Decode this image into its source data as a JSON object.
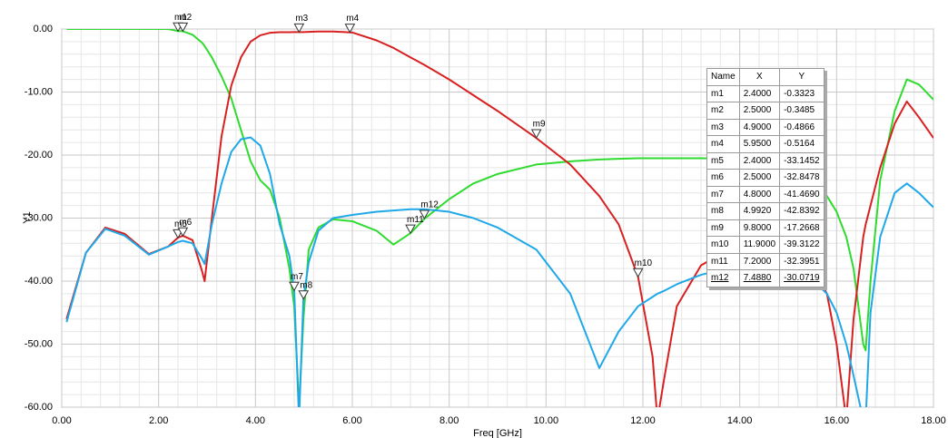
{
  "chart_data": {
    "type": "line",
    "x_label": "Freq [GHz]",
    "y_label": "Y1",
    "x": [
      0.1,
      0.5,
      0.9,
      1.3,
      1.8,
      2.2,
      2.4,
      2.5,
      2.7,
      2.9,
      2.95,
      3.1,
      3.3,
      3.5,
      3.7,
      3.9,
      4.1,
      4.3,
      4.5,
      4.7,
      4.8,
      4.9,
      4.99,
      5.1,
      5.3,
      5.6,
      6.0,
      6.5,
      6.85,
      7.2,
      7.49,
      8.0,
      8.5,
      9.0,
      9.8,
      10.5,
      11.1,
      11.5,
      11.9,
      12.2,
      12.3,
      12.45,
      12.7,
      13.2,
      14,
      14.5,
      15,
      15.4,
      15.8,
      16.0,
      16.2,
      16.35,
      16.55,
      16.6,
      16.7,
      16.9,
      17.2,
      17.45,
      17.7,
      18.0
    ],
    "series": [
      {
        "color": "#2edb2e",
        "values": [
          0,
          0,
          0,
          0,
          0,
          0,
          -0.33,
          -0.35,
          -0.9,
          -2.2,
          -2.7,
          -4.5,
          -7.5,
          -11,
          -16,
          -21,
          -24,
          -25.5,
          -30,
          -38,
          -44,
          -60,
          -46,
          -35,
          -31.5,
          -30.2,
          -30.5,
          -32,
          -34.2,
          -32.4,
          -30.1,
          -27,
          -24.5,
          -23,
          -21.5,
          -21,
          -20.7,
          -20.6,
          -20.5,
          -20.5,
          -20.5,
          -20.5,
          -20.5,
          -20.5,
          -20.6,
          -20.8,
          -21.5,
          -23,
          -26.5,
          -29,
          -33,
          -38,
          -50,
          -51,
          -40,
          -24,
          -13,
          -8,
          -8.8,
          -11.2
        ]
      },
      {
        "color": "#d82020",
        "values": [
          -46,
          -35.5,
          -31.5,
          -32.5,
          -35.7,
          -34.5,
          -33.1,
          -32.8,
          -33.5,
          -38.5,
          -40,
          -30,
          -17,
          -9,
          -4.5,
          -2,
          -1,
          -0.6,
          -0.5,
          -0.5,
          -0.49,
          -0.49,
          -0.48,
          -0.45,
          -0.4,
          -0.4,
          -0.55,
          -1.8,
          -3,
          -4.5,
          -5.7,
          -8,
          -10.5,
          -13,
          -17.3,
          -21.5,
          -26.5,
          -31,
          -39.3,
          -52,
          -62,
          -55,
          -44,
          -37.5,
          -34,
          -34,
          -34.5,
          -36,
          -42,
          -50,
          -62,
          -46,
          -33,
          -31,
          -28,
          -22,
          -15,
          -11.5,
          -14,
          -17.3
        ]
      },
      {
        "color": "#1fa8e8",
        "values": [
          -46.5,
          -35.5,
          -31.7,
          -32.8,
          -35.8,
          -34.5,
          -33.8,
          -33.6,
          -34,
          -36.5,
          -37.3,
          -31,
          -24.5,
          -19.5,
          -17.5,
          -17.2,
          -18.5,
          -23,
          -31,
          -36,
          -41.5,
          -62,
          -42.8,
          -37,
          -32,
          -30,
          -29.5,
          -29,
          -28.8,
          -28.6,
          -28.6,
          -29,
          -30,
          -31.5,
          -35,
          -42,
          -53.8,
          -48,
          -44,
          -42.5,
          -42,
          -41.5,
          -40.5,
          -39,
          -37.5,
          -37,
          -37.5,
          -39,
          -42,
          -45,
          -50,
          -55,
          -62,
          -62,
          -45,
          -33,
          -26,
          -24.5,
          -26,
          -28.3
        ]
      }
    ],
    "xlim": [
      0,
      18
    ],
    "ylim": [
      -60,
      0
    ],
    "xticks": [
      {
        "value": 0,
        "label": "0.00"
      },
      {
        "value": 2,
        "label": "2.00"
      },
      {
        "value": 4,
        "label": "4.00"
      },
      {
        "value": 6,
        "label": "6.00"
      },
      {
        "value": 8,
        "label": "8.00"
      },
      {
        "value": 10,
        "label": "10.00"
      },
      {
        "value": 12,
        "label": "12.00"
      },
      {
        "value": 14,
        "label": "14.00"
      },
      {
        "value": 16,
        "label": "16.00"
      },
      {
        "value": 18,
        "label": "18.00"
      }
    ],
    "yticks": [
      {
        "value": 0,
        "label": "0.00"
      },
      {
        "value": -10,
        "label": "-10.00"
      },
      {
        "value": -20,
        "label": "-20.00"
      },
      {
        "value": -30,
        "label": "-30.00"
      },
      {
        "value": -40,
        "label": "-40.00"
      },
      {
        "value": -50,
        "label": "-50.00"
      },
      {
        "value": -60,
        "label": "-60.00"
      }
    ],
    "grid": true,
    "marker_columns": [
      "Name",
      "X",
      "Y"
    ],
    "markers": [
      {
        "name": "m1",
        "x": {
          "value": 2.4,
          "label": "2.4000"
        },
        "y": {
          "value": -0.3323,
          "label": "-0.3323"
        }
      },
      {
        "name": "m2",
        "x": {
          "value": 2.5,
          "label": "2.5000"
        },
        "y": {
          "value": -0.3485,
          "label": "-0.3485"
        }
      },
      {
        "name": "m3",
        "x": {
          "value": 4.9,
          "label": "4.9000"
        },
        "y": {
          "value": -0.4866,
          "label": "-0.4866"
        }
      },
      {
        "name": "m4",
        "x": {
          "value": 5.95,
          "label": "5.9500"
        },
        "y": {
          "value": -0.5164,
          "label": "-0.5164"
        }
      },
      {
        "name": "m5",
        "x": {
          "value": 2.4,
          "label": "2.4000"
        },
        "y": {
          "value": -33.1452,
          "label": "-33.1452"
        }
      },
      {
        "name": "m6",
        "x": {
          "value": 2.5,
          "label": "2.5000"
        },
        "y": {
          "value": -32.8478,
          "label": "-32.8478"
        }
      },
      {
        "name": "m7",
        "x": {
          "value": 4.8,
          "label": "4.8000"
        },
        "y": {
          "value": -41.469,
          "label": "-41.4690"
        }
      },
      {
        "name": "m8",
        "x": {
          "value": 4.992,
          "label": "4.9920"
        },
        "y": {
          "value": -42.8392,
          "label": "-42.8392"
        }
      },
      {
        "name": "m9",
        "x": {
          "value": 9.8,
          "label": "9.8000"
        },
        "y": {
          "value": -17.2668,
          "label": "-17.2668"
        }
      },
      {
        "name": "m10",
        "x": {
          "value": 11.9,
          "label": "11.9000"
        },
        "y": {
          "value": -39.3122,
          "label": "-39.3122"
        }
      },
      {
        "name": "m11",
        "x": {
          "value": 7.2,
          "label": "7.2000"
        },
        "y": {
          "value": -32.3951,
          "label": "-32.3951"
        }
      },
      {
        "name": "m12",
        "x": {
          "value": 7.488,
          "label": "7.4880"
        },
        "y": {
          "value": -30.0719,
          "label": "-30.0719"
        }
      }
    ]
  }
}
